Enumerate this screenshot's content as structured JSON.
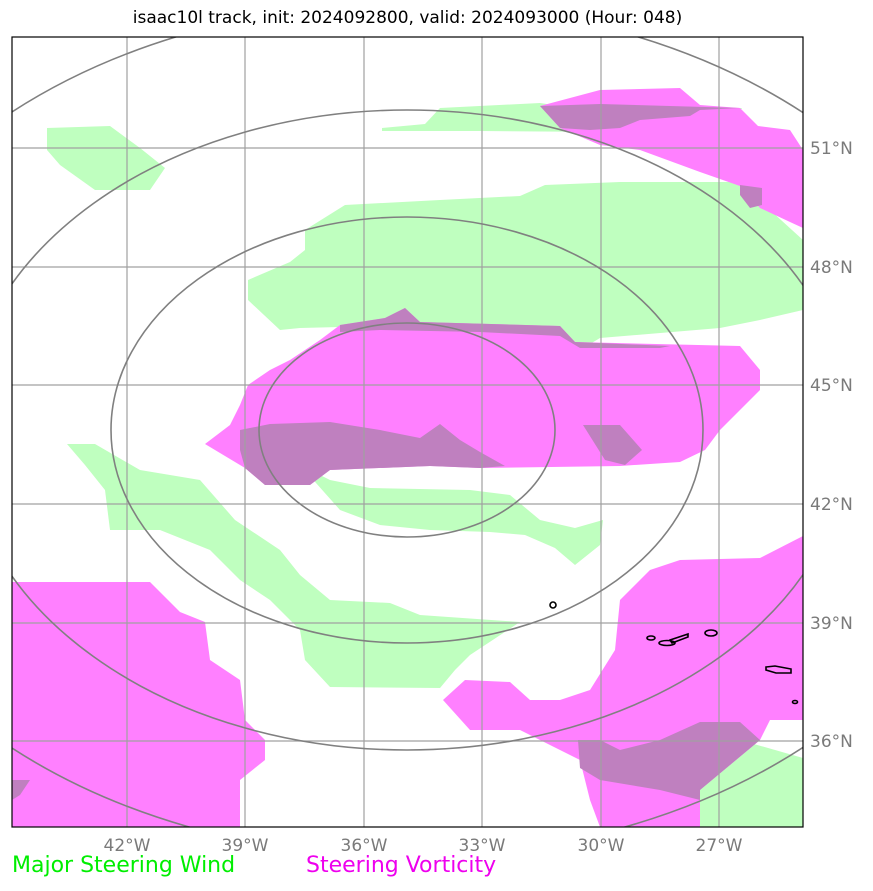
{
  "title": "isaac10l track, init: 2024092800, valid: 2024093000 (Hour: 048)",
  "axes": {
    "lon_ticks": [
      "42°W",
      "39°W",
      "36°W",
      "33°W",
      "30°W",
      "27°W"
    ],
    "lat_ticks": [
      "51°N",
      "48°N",
      "45°N",
      "42°N",
      "39°N",
      "36°N"
    ]
  },
  "legend": {
    "wind_label": "Major Steering Wind",
    "wind_color": "#00ee00",
    "vorticity_label": "Steering Vorticity",
    "vorticity_color": "#ee00ee"
  },
  "colors": {
    "wind_fill": "#bfffbf",
    "vorticity_fill": "#ff80ff",
    "overlap_fill": "#bf80bf",
    "grid": "#a0a0a0",
    "range_rings": "#808080",
    "coastline": "#000000"
  }
}
